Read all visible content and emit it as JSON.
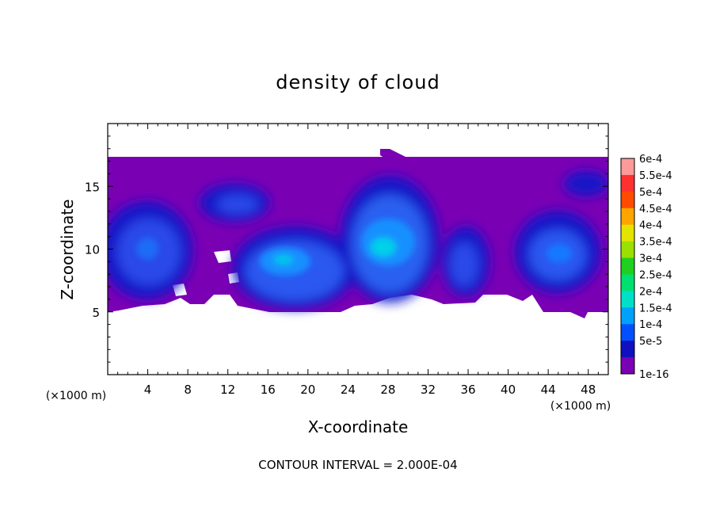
{
  "chart_data": {
    "type": "heatmap",
    "title": "density of cloud",
    "xlabel": "X-coordinate",
    "ylabel": "Z-coordinate",
    "x_unit": "(×1000 m)",
    "y_unit": "(×1000 m)",
    "xlim": [
      0,
      50
    ],
    "ylim": [
      0,
      20
    ],
    "x_ticks": [
      "4",
      "8",
      "12",
      "16",
      "20",
      "24",
      "28",
      "32",
      "36",
      "40",
      "44",
      "48"
    ],
    "y_ticks": [
      "5",
      "10",
      "15"
    ],
    "footer": "CONTOUR INTERVAL = 2.000E-04",
    "colorbar": {
      "labels": [
        "6e-4",
        "5.5e-4",
        "5e-4",
        "4.5e-4",
        "4e-4",
        "3.5e-4",
        "3e-4",
        "2.5e-4",
        "2e-4",
        "1.5e-4",
        "1e-4",
        "5e-5",
        "1e-16"
      ],
      "colors": [
        "#ff9a9a",
        "#ff3030",
        "#ff4a00",
        "#ffa500",
        "#e4e400",
        "#9ae000",
        "#20d020",
        "#00e070",
        "#00e0c8",
        "#00a0ff",
        "#0050ff",
        "#1010c0",
        "#7a00b4"
      ]
    },
    "cloud_regions": [
      {
        "name": "stratiform-layer",
        "x_range": [
          0,
          50
        ],
        "z_range": [
          5,
          17.5
        ],
        "level": "1e-16"
      },
      {
        "name": "core-left",
        "x": 4,
        "z": 10,
        "peak": "1e-4"
      },
      {
        "name": "core-upper",
        "x": 13,
        "z": 13.5,
        "peak": "1e-4"
      },
      {
        "name": "core-center",
        "x": 18,
        "z": 8.5,
        "peak": "1.5e-4"
      },
      {
        "name": "core-main",
        "x": 28,
        "z": 10,
        "peak": "2e-4"
      },
      {
        "name": "core-right-1",
        "x": 35,
        "z": 9.5,
        "peak": "1e-4"
      },
      {
        "name": "core-right-2",
        "x": 44,
        "z": 10,
        "peak": "1e-4"
      },
      {
        "name": "core-upper-right",
        "x": 47.5,
        "z": 15,
        "peak": "5e-5"
      }
    ]
  }
}
